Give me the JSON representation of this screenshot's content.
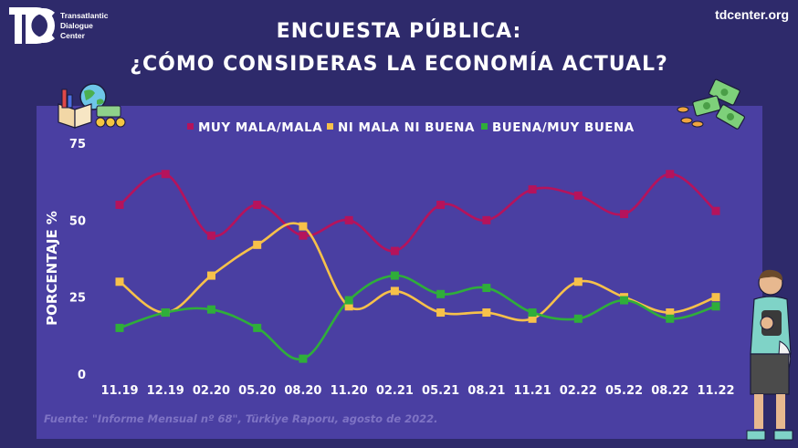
{
  "header": {
    "org_name_lines": [
      "Transatlantic",
      "Dialogue",
      "Center"
    ],
    "logo_letters": "TDC",
    "site": "tdcenter.org"
  },
  "title_line1": "ENCUESTA PÚBLICA:",
  "title_line2": "¿CÓMO CONSIDERAS LA ECONOMÍA ACTUAL?",
  "source": "Fuente: \"Informe Mensual nº 68\", Türkiye Raporu, agosto de 2022.",
  "colors": {
    "background": "#2e2a6b",
    "plot_background": "#4a3fa2",
    "series": [
      "#b5135c",
      "#f7c14a",
      "#2fae3a"
    ]
  },
  "icons": [
    "books-globe-icon",
    "money-bills-icon",
    "person-illustration"
  ],
  "chart_data": {
    "type": "line",
    "categories": [
      "11.19",
      "12.19",
      "02.20",
      "05.20",
      "08.20",
      "11.20",
      "02.21",
      "05.21",
      "08.21",
      "11.21",
      "02.22",
      "05.22",
      "08.22",
      "11.22"
    ],
    "series": [
      {
        "name": "MUY MALA/MALA",
        "values": [
          55,
          65,
          45,
          55,
          45,
          50,
          40,
          55,
          50,
          60,
          58,
          52,
          65,
          53
        ]
      },
      {
        "name": "NI MALA NI BUENA",
        "values": [
          30,
          20,
          32,
          42,
          48,
          22,
          27,
          20,
          20,
          18,
          30,
          25,
          20,
          25
        ]
      },
      {
        "name": "BUENA/MUY BUENA",
        "values": [
          15,
          20,
          21,
          15,
          5,
          24,
          32,
          26,
          28,
          20,
          18,
          24,
          18,
          22
        ]
      }
    ],
    "ylabel": "PORCENTAJE %",
    "yticks": [
      0,
      25,
      50,
      75
    ],
    "ylim": [
      0,
      75
    ],
    "grid": false,
    "legend": "top-center"
  }
}
